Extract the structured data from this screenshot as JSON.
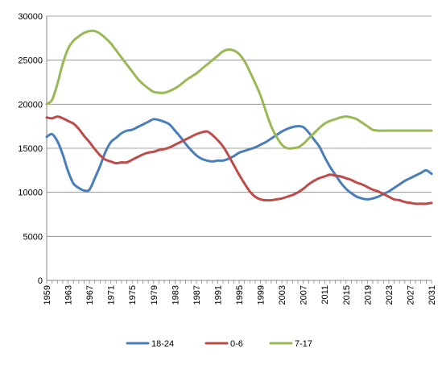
{
  "chart_data": {
    "type": "line",
    "title": "",
    "xlabel": "",
    "ylabel": "",
    "ylim": [
      0,
      30000
    ],
    "yticks": [
      0,
      5000,
      10000,
      15000,
      20000,
      25000,
      30000
    ],
    "xticks": [
      1959,
      1963,
      1967,
      1971,
      1975,
      1979,
      1983,
      1987,
      1991,
      1995,
      1999,
      2003,
      2007,
      2011,
      2015,
      2019,
      2023,
      2027,
      2031
    ],
    "grid": "horizontal",
    "legend_position": "bottom",
    "x": [
      1959,
      1960,
      1961,
      1962,
      1963,
      1964,
      1965,
      1966,
      1967,
      1968,
      1969,
      1970,
      1971,
      1972,
      1973,
      1974,
      1975,
      1976,
      1977,
      1978,
      1979,
      1980,
      1981,
      1982,
      1983,
      1984,
      1985,
      1986,
      1987,
      1988,
      1989,
      1990,
      1991,
      1992,
      1993,
      1994,
      1995,
      1996,
      1997,
      1998,
      1999,
      2000,
      2001,
      2002,
      2003,
      2004,
      2005,
      2006,
      2007,
      2008,
      2009,
      2010,
      2011,
      2012,
      2013,
      2014,
      2015,
      2016,
      2017,
      2018,
      2019,
      2020,
      2021,
      2022,
      2023,
      2024,
      2025,
      2026,
      2027,
      2028,
      2029,
      2030,
      2031
    ],
    "series": [
      {
        "name": "18-24",
        "color": "#4a7ebb",
        "values": [
          16300,
          16600,
          15800,
          14300,
          12400,
          11000,
          10500,
          10200,
          10300,
          11600,
          13000,
          14600,
          15700,
          16200,
          16700,
          17000,
          17100,
          17400,
          17700,
          18000,
          18300,
          18200,
          18000,
          17700,
          17000,
          16300,
          15500,
          14800,
          14200,
          13800,
          13600,
          13500,
          13600,
          13600,
          13800,
          14100,
          14500,
          14700,
          14900,
          15100,
          15400,
          15700,
          16100,
          16500,
          16900,
          17200,
          17400,
          17500,
          17400,
          16800,
          16000,
          15200,
          14000,
          12900,
          12000,
          11100,
          10400,
          9900,
          9500,
          9300,
          9200,
          9300,
          9500,
          9800,
          10100,
          10500,
          10900,
          11300,
          11600,
          11900,
          12200,
          12500,
          12100
        ]
      },
      {
        "name": "0-6",
        "color": "#be4b48",
        "values": [
          18500,
          18400,
          18600,
          18400,
          18100,
          17800,
          17200,
          16400,
          15700,
          14900,
          14200,
          13700,
          13500,
          13300,
          13400,
          13400,
          13700,
          14000,
          14300,
          14500,
          14600,
          14800,
          14900,
          15100,
          15400,
          15700,
          16000,
          16300,
          16600,
          16800,
          16900,
          16500,
          15900,
          15200,
          14200,
          13100,
          12000,
          11000,
          10100,
          9500,
          9200,
          9100,
          9100,
          9200,
          9300,
          9500,
          9700,
          10000,
          10400,
          10900,
          11300,
          11600,
          11800,
          12000,
          11900,
          11800,
          11600,
          11400,
          11100,
          10900,
          10600,
          10300,
          10100,
          9800,
          9500,
          9200,
          9100,
          8900,
          8800,
          8700,
          8700,
          8700,
          8800
        ]
      },
      {
        "name": "7-17",
        "color": "#98b954",
        "values": [
          20000,
          20500,
          22300,
          24600,
          26300,
          27200,
          27700,
          28100,
          28300,
          28300,
          28000,
          27500,
          26900,
          26100,
          25300,
          24500,
          23700,
          22900,
          22300,
          21800,
          21400,
          21300,
          21300,
          21500,
          21800,
          22200,
          22700,
          23100,
          23500,
          24000,
          24500,
          25000,
          25500,
          26000,
          26200,
          26100,
          25700,
          24900,
          23700,
          22400,
          21000,
          19200,
          17500,
          16300,
          15400,
          15000,
          15000,
          15100,
          15500,
          16100,
          16700,
          17300,
          17800,
          18100,
          18300,
          18500,
          18600,
          18500,
          18300,
          17900,
          17500,
          17100,
          17000,
          17000,
          17000,
          17000,
          17000,
          17000,
          17000,
          17000,
          17000,
          17000,
          17000
        ]
      }
    ]
  }
}
